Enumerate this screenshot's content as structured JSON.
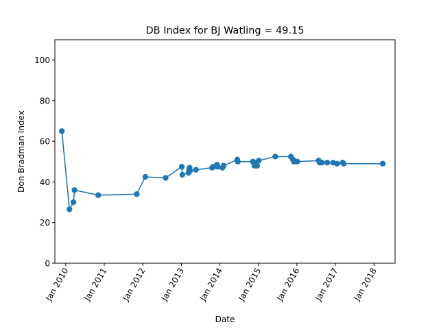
{
  "chart_data": {
    "type": "line",
    "title": "DB Index for BJ Watling = 49.15",
    "xlabel": "Date",
    "ylabel": "Don Bradman Index",
    "ylim": [
      0,
      110
    ],
    "yticks": [
      0,
      20,
      40,
      60,
      80,
      100
    ],
    "xlim": [
      "2009-09-20",
      "2018-07-20"
    ],
    "xticks": [
      {
        "date": "2010-01-01",
        "label": "Jan 2010"
      },
      {
        "date": "2011-01-01",
        "label": "Jan 2011"
      },
      {
        "date": "2012-01-01",
        "label": "Jan 2012"
      },
      {
        "date": "2013-01-01",
        "label": "Jan 2013"
      },
      {
        "date": "2014-01-01",
        "label": "Jan 2014"
      },
      {
        "date": "2015-01-01",
        "label": "Jan 2015"
      },
      {
        "date": "2016-01-01",
        "label": "Jan 2016"
      },
      {
        "date": "2016-12-31",
        "label": "Jan 2017"
      },
      {
        "date": "2018-01-01",
        "label": "Jan 2018"
      }
    ],
    "grid": false,
    "marker": "circle",
    "color": "#1f77b4",
    "series": [
      {
        "x": [
          "2009-11-25",
          "2010-02-05",
          "2010-03-15",
          "2010-03-25",
          "2010-11-05",
          "2011-11-05",
          "2012-01-25",
          "2012-08-05",
          "2013-01-05",
          "2013-01-10",
          "2013-03-10",
          "2013-03-15",
          "2013-03-20",
          "2013-03-25",
          "2013-05-20",
          "2013-10-20",
          "2013-10-28",
          "2013-12-05",
          "2013-12-10",
          "2014-01-25",
          "2014-02-05",
          "2014-06-15",
          "2014-06-20",
          "2014-11-10",
          "2014-11-25",
          "2014-12-10",
          "2014-12-20",
          "2015-01-05",
          "2015-06-10",
          "2015-11-05",
          "2015-11-25",
          "2015-12-05",
          "2016-01-05",
          "2016-07-25",
          "2016-08-05",
          "2016-08-25",
          "2016-10-15",
          "2016-12-10",
          "2017-01-15",
          "2017-03-10",
          "2017-03-20",
          "2018-03-25"
        ],
        "y": [
          65,
          26.5,
          30,
          36,
          33.5,
          34,
          42.5,
          42,
          47.5,
          43.5,
          44.5,
          46,
          47,
          45.5,
          46,
          47,
          47.5,
          48.5,
          47.5,
          47,
          48,
          51,
          50,
          50,
          48,
          49.5,
          48,
          50.5,
          52.5,
          52.5,
          51,
          50,
          50,
          50.5,
          49.5,
          49.5,
          49.5,
          49.5,
          49,
          49.5,
          49,
          49
        ]
      }
    ]
  }
}
